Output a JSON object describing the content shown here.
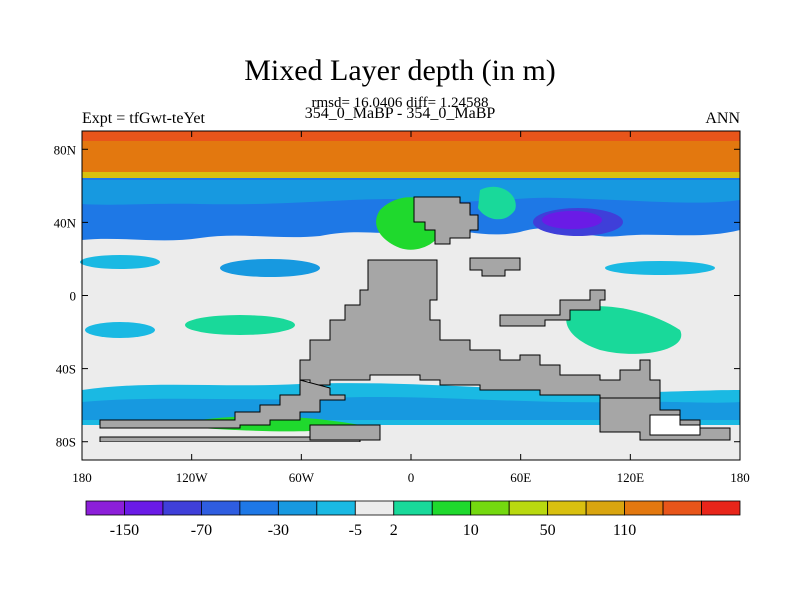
{
  "chart_data": {
    "type": "heatmap",
    "title": "Mixed Layer depth (in m)",
    "subtitle_stats": "rmsd= 16.0406 diff= 1.24588",
    "subtitle_case": "354_0_MaBP - 354_0_MaBP",
    "left_label": "Expt = tfGwt-teYet",
    "right_label": "ANN",
    "xlim": [
      -180,
      180
    ],
    "ylim": [
      -90,
      90
    ],
    "x_ticks": [
      {
        "value": -180,
        "label": "180"
      },
      {
        "value": -120,
        "label": "120W"
      },
      {
        "value": -60,
        "label": "60W"
      },
      {
        "value": 0,
        "label": "0"
      },
      {
        "value": 60,
        "label": "60E"
      },
      {
        "value": 120,
        "label": "120E"
      },
      {
        "value": 180,
        "label": "180"
      }
    ],
    "y_ticks": [
      {
        "value": 80,
        "label": "80N"
      },
      {
        "value": 40,
        "label": "40N"
      },
      {
        "value": 0,
        "label": "0"
      },
      {
        "value": -40,
        "label": "40S"
      },
      {
        "value": -80,
        "label": "80S"
      }
    ],
    "colorbar": {
      "colors": [
        "#8c1fd9",
        "#6a1be6",
        "#3f3fd9",
        "#2f5de0",
        "#1e78e6",
        "#1799e0",
        "#1ab9e3",
        "#ececec",
        "#19d99a",
        "#1fd92d",
        "#74d90f",
        "#b9d90f",
        "#d9c00f",
        "#d9a50f",
        "#e3780f",
        "#e8551a",
        "#e8251a"
      ],
      "labels": [
        "-150",
        "-70",
        "-30",
        "-5",
        "2",
        "10",
        "50",
        "110"
      ],
      "label_positions": [
        1,
        3,
        5,
        7,
        8,
        10,
        12,
        14
      ]
    },
    "land_color": "#a6a6a6"
  }
}
